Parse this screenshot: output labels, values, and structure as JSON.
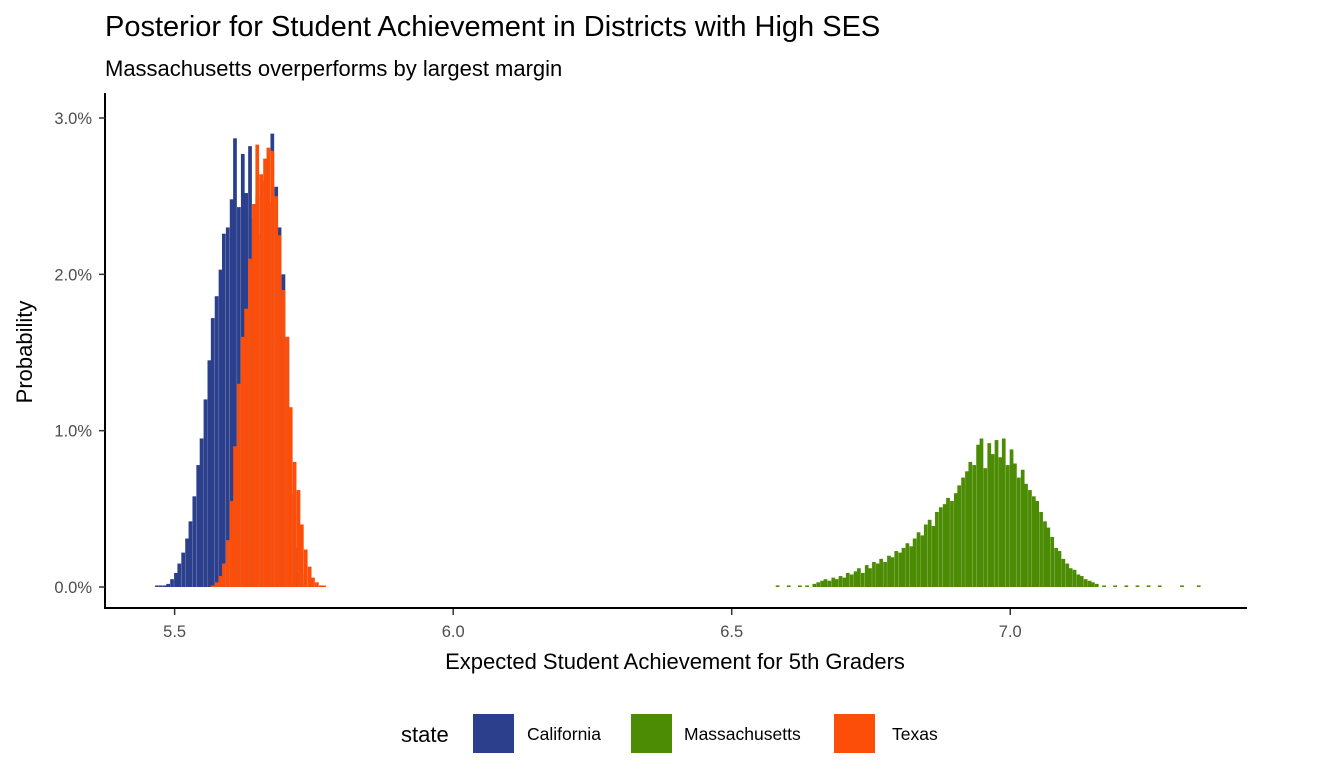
{
  "chart_data": {
    "type": "bar",
    "subtype": "histogram",
    "title": "Posterior for Student Achievement in Districts with High SES",
    "subtitle": "Massachusetts overperforms by largest margin",
    "xlabel": "Expected Student Achievement for 5th Graders",
    "ylabel": "Probability",
    "xlim": [
      5.375,
      7.425
    ],
    "ylim": [
      0.0,
      0.0315
    ],
    "x_ticks": [
      {
        "value": 5.5,
        "label": "5.5"
      },
      {
        "value": 6.0,
        "label": "6.0"
      },
      {
        "value": 6.5,
        "label": "6.5"
      },
      {
        "value": 7.0,
        "label": "7.0"
      }
    ],
    "y_ticks": [
      {
        "value": 0.0,
        "label": "0.0%"
      },
      {
        "value": 0.01,
        "label": "1.0%"
      },
      {
        "value": 0.02,
        "label": "2.0%"
      },
      {
        "value": 0.03,
        "label": "3.0%"
      }
    ],
    "bin_width": 0.00667,
    "grid": false,
    "legend": {
      "title": "state",
      "position": "bottom"
    },
    "series": [
      {
        "name": "California",
        "color": "#2b3f8c",
        "bins": [
          [
            5.465,
            0.0001
          ],
          [
            5.472,
            0.0001
          ],
          [
            5.479,
            0.0001
          ],
          [
            5.485,
            0.0002
          ],
          [
            5.492,
            0.0005
          ],
          [
            5.499,
            0.0009
          ],
          [
            5.505,
            0.0015
          ],
          [
            5.512,
            0.0022
          ],
          [
            5.519,
            0.0031
          ],
          [
            5.525,
            0.0042
          ],
          [
            5.532,
            0.0058
          ],
          [
            5.539,
            0.0078
          ],
          [
            5.545,
            0.0095
          ],
          [
            5.552,
            0.012
          ],
          [
            5.559,
            0.0145
          ],
          [
            5.565,
            0.0172
          ],
          [
            5.572,
            0.0186
          ],
          [
            5.579,
            0.0203
          ],
          [
            5.585,
            0.0226
          ],
          [
            5.592,
            0.023
          ],
          [
            5.599,
            0.0248
          ],
          [
            5.605,
            0.0287
          ],
          [
            5.612,
            0.0243
          ],
          [
            5.619,
            0.0277
          ],
          [
            5.625,
            0.0252
          ],
          [
            5.632,
            0.0282
          ],
          [
            5.639,
            0.0236
          ],
          [
            5.645,
            0.025
          ],
          [
            5.652,
            0.0226
          ],
          [
            5.659,
            0.026
          ],
          [
            5.665,
            0.0246
          ],
          [
            5.672,
            0.029
          ],
          [
            5.679,
            0.0256
          ],
          [
            5.685,
            0.023
          ],
          [
            5.692,
            0.02
          ],
          [
            5.699,
            0.016
          ],
          [
            5.705,
            0.011
          ],
          [
            5.712,
            0.006
          ],
          [
            5.719,
            0.0025
          ],
          [
            5.725,
            0.0008
          ],
          [
            5.732,
            0.0002
          ]
        ]
      },
      {
        "name": "Texas",
        "color": "#fc4e08",
        "bins": [
          [
            5.565,
            0.0001
          ],
          [
            5.572,
            0.0003
          ],
          [
            5.579,
            0.0007
          ],
          [
            5.585,
            0.0015
          ],
          [
            5.592,
            0.003
          ],
          [
            5.599,
            0.0055
          ],
          [
            5.605,
            0.009
          ],
          [
            5.612,
            0.013
          ],
          [
            5.619,
            0.016
          ],
          [
            5.625,
            0.0178
          ],
          [
            5.632,
            0.021
          ],
          [
            5.639,
            0.0245
          ],
          [
            5.645,
            0.0283
          ],
          [
            5.652,
            0.0264
          ],
          [
            5.659,
            0.0274
          ],
          [
            5.665,
            0.0281
          ],
          [
            5.672,
            0.0279
          ],
          [
            5.679,
            0.025
          ],
          [
            5.685,
            0.0225
          ],
          [
            5.692,
            0.019
          ],
          [
            5.699,
            0.016
          ],
          [
            5.705,
            0.0115
          ],
          [
            5.712,
            0.008
          ],
          [
            5.719,
            0.0062
          ],
          [
            5.725,
            0.004
          ],
          [
            5.732,
            0.0024
          ],
          [
            5.739,
            0.0013
          ],
          [
            5.745,
            0.0006
          ],
          [
            5.752,
            0.0003
          ],
          [
            5.759,
            0.0001
          ],
          [
            5.765,
            5e-05
          ]
        ]
      },
      {
        "name": "Massachusetts",
        "color": "#4b8c04",
        "bins": [
          [
            6.579,
            0.0001
          ],
          [
            6.599,
            0.0001
          ],
          [
            6.619,
            0.0001
          ],
          [
            6.632,
            0.0001
          ],
          [
            6.645,
            0.0002
          ],
          [
            6.652,
            0.0003
          ],
          [
            6.659,
            0.0004
          ],
          [
            6.665,
            0.0005
          ],
          [
            6.672,
            0.0004
          ],
          [
            6.679,
            0.0006
          ],
          [
            6.685,
            0.0005
          ],
          [
            6.692,
            0.0007
          ],
          [
            6.699,
            0.0006
          ],
          [
            6.705,
            0.0009
          ],
          [
            6.712,
            0.0008
          ],
          [
            6.719,
            0.001
          ],
          [
            6.725,
            0.0012
          ],
          [
            6.732,
            0.0009
          ],
          [
            6.739,
            0.0014
          ],
          [
            6.745,
            0.0012
          ],
          [
            6.752,
            0.0016
          ],
          [
            6.759,
            0.0015
          ],
          [
            6.765,
            0.0018
          ],
          [
            6.772,
            0.0016
          ],
          [
            6.779,
            0.002
          ],
          [
            6.785,
            0.0019
          ],
          [
            6.792,
            0.0023
          ],
          [
            6.799,
            0.0022
          ],
          [
            6.805,
            0.0025
          ],
          [
            6.812,
            0.0028
          ],
          [
            6.819,
            0.0026
          ],
          [
            6.825,
            0.0031
          ],
          [
            6.832,
            0.0035
          ],
          [
            6.839,
            0.0033
          ],
          [
            6.845,
            0.004
          ],
          [
            6.852,
            0.0043
          ],
          [
            6.859,
            0.0039
          ],
          [
            6.865,
            0.0048
          ],
          [
            6.872,
            0.0051
          ],
          [
            6.879,
            0.0053
          ],
          [
            6.885,
            0.0057
          ],
          [
            6.892,
            0.0055
          ],
          [
            6.899,
            0.006
          ],
          [
            6.905,
            0.0065
          ],
          [
            6.912,
            0.007
          ],
          [
            6.919,
            0.0074
          ],
          [
            6.925,
            0.008
          ],
          [
            6.932,
            0.0078
          ],
          [
            6.939,
            0.0091
          ],
          [
            6.945,
            0.0095
          ],
          [
            6.952,
            0.0076
          ],
          [
            6.959,
            0.0092
          ],
          [
            6.965,
            0.0085
          ],
          [
            6.972,
            0.0094
          ],
          [
            6.979,
            0.0083
          ],
          [
            6.985,
            0.0095
          ],
          [
            6.992,
            0.0078
          ],
          [
            6.999,
            0.0088
          ],
          [
            7.005,
            0.0079
          ],
          [
            7.012,
            0.007
          ],
          [
            7.019,
            0.0075
          ],
          [
            7.025,
            0.0066
          ],
          [
            7.032,
            0.0062
          ],
          [
            7.039,
            0.0058
          ],
          [
            7.045,
            0.0055
          ],
          [
            7.052,
            0.0048
          ],
          [
            7.059,
            0.0042
          ],
          [
            7.065,
            0.0038
          ],
          [
            7.072,
            0.0032
          ],
          [
            7.079,
            0.0025
          ],
          [
            7.085,
            0.0023
          ],
          [
            7.092,
            0.0018
          ],
          [
            7.099,
            0.0015
          ],
          [
            7.105,
            0.0012
          ],
          [
            7.112,
            0.0011
          ],
          [
            7.119,
            0.0008
          ],
          [
            7.125,
            0.0007
          ],
          [
            7.132,
            0.0005
          ],
          [
            7.139,
            0.0004
          ],
          [
            7.145,
            0.0003
          ],
          [
            7.152,
            0.0002
          ],
          [
            7.165,
            0.0001
          ],
          [
            7.185,
            0.0001
          ],
          [
            7.205,
            0.0001
          ],
          [
            7.225,
            0.0001
          ],
          [
            7.245,
            0.0001
          ],
          [
            7.265,
            0.0001
          ],
          [
            7.305,
            0.0001
          ],
          [
            7.335,
            0.0001
          ]
        ]
      }
    ]
  },
  "legend_items": [
    {
      "label": "California",
      "color": "#2b3f8c"
    },
    {
      "label": "Massachusetts",
      "color": "#4b8c04"
    },
    {
      "label": "Texas",
      "color": "#fc4e08"
    }
  ]
}
